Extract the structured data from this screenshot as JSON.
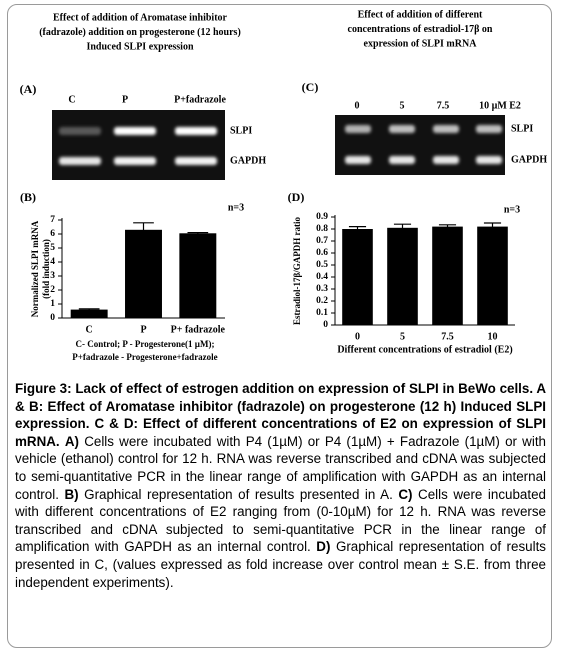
{
  "gels": [
    {
      "label": "(A)",
      "title": [
        "Effect of  addition of Aromatase inhibitor",
        "(fadrazole) addition on progesterone (12 hours)",
        "Induced SLPI expression"
      ],
      "lanes": [
        "C",
        "P",
        "P+fadrazole"
      ],
      "bands": [
        "SLPI",
        "GAPDH"
      ]
    },
    {
      "label": "(C)",
      "title": [
        "Effect of addition of different",
        "concentrations of estradiol-17β on",
        "expression of SLPI mRNA"
      ],
      "lanes": [
        "0",
        "5",
        "7.5",
        "10 µM E2"
      ],
      "bands": [
        "SLPI",
        "GAPDH"
      ]
    }
  ],
  "chart_data": [
    {
      "type": "bar",
      "label": "(B)",
      "note": "n=3",
      "ylabel": [
        "Normalized SLPI mRNA",
        "(fold induction)"
      ],
      "categories": [
        "C",
        "P",
        "P+ fadrazole"
      ],
      "values": [
        0.6,
        6.3,
        6.05
      ],
      "errors": [
        0.05,
        0.5,
        0.05
      ],
      "color": "#000000",
      "ylim": [
        0,
        7
      ],
      "yticks": [
        0,
        1,
        2,
        3,
        4,
        5,
        6,
        7
      ],
      "notes": [
        "C-  Control;  P  -  Progesterone(1  µM);",
        "P+fadrazole   - Progesterone+fadrazole"
      ]
    },
    {
      "type": "bar",
      "label": "(D)",
      "note": "n=3",
      "ylabel": [
        "Estradiol-17β/GAPDH ratio"
      ],
      "xlabel": "Different concentrations of estradiol (E2)",
      "categories": [
        "0",
        "5",
        "7.5",
        "10"
      ],
      "values": [
        0.8,
        0.81,
        0.82,
        0.82
      ],
      "errors": [
        0.02,
        0.03,
        0.015,
        0.03
      ],
      "color": "#000000",
      "ylim": [
        0,
        0.9
      ],
      "yticks": [
        0,
        0.1,
        0.2,
        0.3,
        0.4,
        0.5,
        0.6,
        0.7,
        0.8,
        0.9
      ]
    }
  ],
  "caption": {
    "heading": "Figure 3: Lack of effect of estrogen addition on expression of SLPI in BeWo cells. A & B: Effect of Aromatase inhibitor (fadrazole) on progesterone (12 h) Induced SLPI expression. C & D: Effect of different concentrations of E2 on expression of SLPI mRNA.",
    "items": [
      {
        "label": "A)",
        "text": "Cells were incubated with P4 (1µM) or P4 (1µM) + Fadrazole (1µM) or with vehicle (ethanol) control for 12 h. RNA was reverse transcribed and cDNA was subjected to semi-quantitative PCR in the linear range of amplification with GAPDH as an internal control."
      },
      {
        "label": "B)",
        "text": "Graphical representation of results presented in A."
      },
      {
        "label": "C)",
        "text": "Cells were incubated with different concentrations of E2 ranging from (0-10µM) for 12 h. RNA was reverse transcribed and cDNA subjected to semi-quantitative PCR in the linear range of amplification with GAPDH as an internal control."
      },
      {
        "label": "D)",
        "text": "Graphical representation of results presented in C, (values expressed as fold increase over control mean ± S.E. from three independent experiments)."
      }
    ]
  }
}
